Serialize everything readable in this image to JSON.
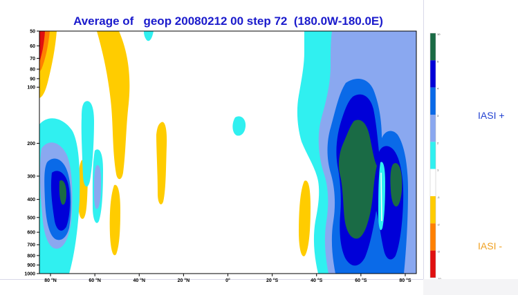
{
  "chart_data": {
    "type": "heatmap",
    "title": "Average of   geop 20080212 00 step 72  (180.0W-180.0E)",
    "x_tick_labels": [
      "80 °N",
      "60 °N",
      "40 °N",
      "20 °N",
      "0°",
      "20 °S",
      "40 °S",
      "60 °S",
      "80 °S"
    ],
    "x_tick_values": [
      80,
      60,
      40,
      20,
      0,
      -20,
      -40,
      -60,
      -80
    ],
    "xlim": [
      85,
      -85
    ],
    "y_tick_labels": [
      "50",
      "60",
      "70",
      "80",
      "90",
      "100",
      "200",
      "300",
      "400",
      "500",
      "600",
      "700",
      "800",
      "900",
      "1000"
    ],
    "y_tick_values": [
      50,
      60,
      70,
      80,
      90,
      100,
      200,
      300,
      400,
      500,
      600,
      700,
      800,
      900,
      1000
    ],
    "ylim": [
      50,
      1000
    ],
    "y_scale": "log",
    "y_inverted": true,
    "legend_levels": [
      "10",
      "5",
      "4",
      "3",
      "2",
      "1",
      "-1",
      "-2",
      "-3",
      "-10"
    ],
    "legend_colors": [
      "#1a6b45",
      "#0000d8",
      "#0a6ae8",
      "#8aa8f0",
      "#30f0f0",
      "#ffffff",
      "#ffcc00",
      "#ff8000",
      "#e01010"
    ],
    "annotations": {
      "plus_label": "IASI +",
      "minus_label": "IASI -"
    }
  }
}
